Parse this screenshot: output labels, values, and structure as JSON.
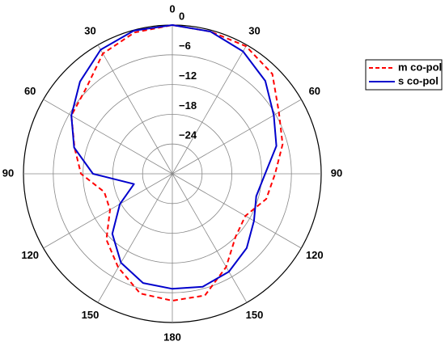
{
  "chart_data": {
    "type": "polar",
    "theta": [
      0,
      15,
      30,
      45,
      60,
      75,
      90,
      105,
      120,
      135,
      150,
      165,
      180,
      195,
      210,
      225,
      240,
      255,
      270,
      285,
      300,
      315,
      330,
      345
    ],
    "direction": "clockwise",
    "zero_location": "top",
    "rlim": [
      -30,
      0
    ],
    "rticks": [
      {
        "value": -24,
        "label": "−24"
      },
      {
        "value": -18,
        "label": "−18"
      },
      {
        "value": -12,
        "label": "−12"
      },
      {
        "value": -6,
        "label": "−6"
      },
      0
    ],
    "thetaticks": [
      0,
      30,
      60,
      90,
      120,
      150,
      180,
      {
        "value": 210,
        "label": "150"
      },
      {
        "value": 240,
        "label": "120"
      },
      {
        "value": 270,
        "label": "90"
      },
      {
        "value": 300,
        "label": "60"
      },
      {
        "value": 330,
        "label": "30"
      }
    ],
    "grid": true,
    "legend": "right",
    "series": [
      {
        "name": "m co-pol",
        "color": "#ff0000",
        "dash": true,
        "values": [
          0,
          -0.3,
          -0.3,
          -1.5,
          -5.2,
          -7,
          -9.3,
          -10.4,
          -13,
          -12,
          -8.3,
          -4.6,
          -4.4,
          -5,
          -8.2,
          -11.2,
          -15.5,
          -15.8,
          -11.6,
          -9.6,
          -6.5,
          -5.5,
          -2,
          -0.5
        ]
      },
      {
        "name": "s co-pol",
        "color": "#0000cc",
        "dash": false,
        "values": [
          0,
          -0.3,
          -1.5,
          -3.5,
          -6.4,
          -8.3,
          -11.3,
          -12.5,
          -11,
          -8.8,
          -7.2,
          -6.4,
          -6.8,
          -7.2,
          -9.3,
          -12.9,
          -17.8,
          -22,
          -14,
          -9.5,
          -6.5,
          -3.7,
          -1.1,
          -0.1
        ]
      }
    ]
  }
}
